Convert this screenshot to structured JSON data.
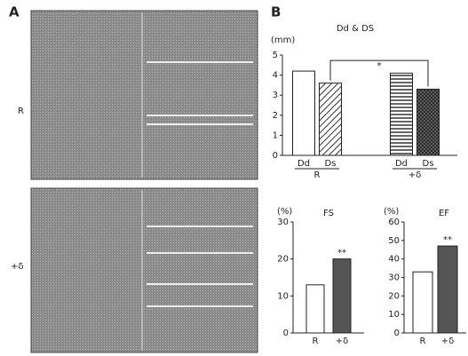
{
  "panels": {
    "a_label": "A",
    "b_label": "B",
    "rows": [
      "R",
      "+δ"
    ]
  },
  "chart_data": [
    {
      "type": "bar",
      "title": "Dd & DS",
      "ylabel": "(mm)",
      "categories": [
        "Dd",
        "Ds",
        "Dd",
        "Ds"
      ],
      "groups": [
        "R",
        "+δ"
      ],
      "values": [
        4.2,
        3.6,
        4.1,
        3.3
      ],
      "fills": [
        "white",
        "hatch",
        "stripes",
        "cross"
      ],
      "ylim": [
        0,
        5
      ],
      "yticks": [
        0,
        1,
        2,
        3,
        4,
        5
      ],
      "annotations": [
        {
          "from": 1,
          "to": 3,
          "text": "*"
        }
      ]
    },
    {
      "type": "bar",
      "title": "FS",
      "ylabel": "(%)",
      "categories": [
        "R",
        "+δ"
      ],
      "values": [
        13,
        20
      ],
      "fills": [
        "white",
        "dark"
      ],
      "ylim": [
        0,
        30
      ],
      "yticks": [
        0,
        10,
        20,
        30
      ],
      "annotations": [
        {
          "from": 1,
          "to": 1,
          "text": "**"
        }
      ]
    },
    {
      "type": "bar",
      "title": "EF",
      "ylabel": "(%)",
      "categories": [
        "R",
        "+δ"
      ],
      "values": [
        33,
        47
      ],
      "fills": [
        "white",
        "dark"
      ],
      "ylim": [
        0,
        60
      ],
      "yticks": [
        0,
        10,
        20,
        30,
        40,
        50,
        60
      ],
      "annotations": [
        {
          "from": 1,
          "to": 1,
          "text": "**"
        }
      ]
    }
  ]
}
